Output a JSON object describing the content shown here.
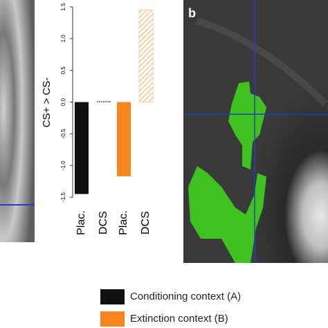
{
  "chart_data": {
    "type": "bar",
    "panel_label": "b",
    "y_label": "CS+ > CS-",
    "categories": [
      "Plac.",
      "DCS",
      "Plac.",
      "DCS"
    ],
    "series": [
      {
        "name": "Conditioning context (A)",
        "color": "#111111",
        "values": [
          -1.45,
          0.01,
          null,
          null
        ]
      },
      {
        "name": "Extinction context (B)",
        "color": "#f7861e",
        "values": [
          null,
          null,
          -1.17,
          1.45
        ]
      }
    ],
    "hatched": [
      false,
      true,
      false,
      true
    ],
    "ylim": [
      -1.5,
      1.5
    ],
    "yticks": [
      1.5,
      {
        "value": 1.0,
        "label": "1.0"
      },
      0.5,
      {
        "value": 0.0,
        "label": "0.0"
      },
      -0.5,
      {
        "value": -1.0,
        "label": "-1.0"
      },
      -1.5
    ]
  }
}
